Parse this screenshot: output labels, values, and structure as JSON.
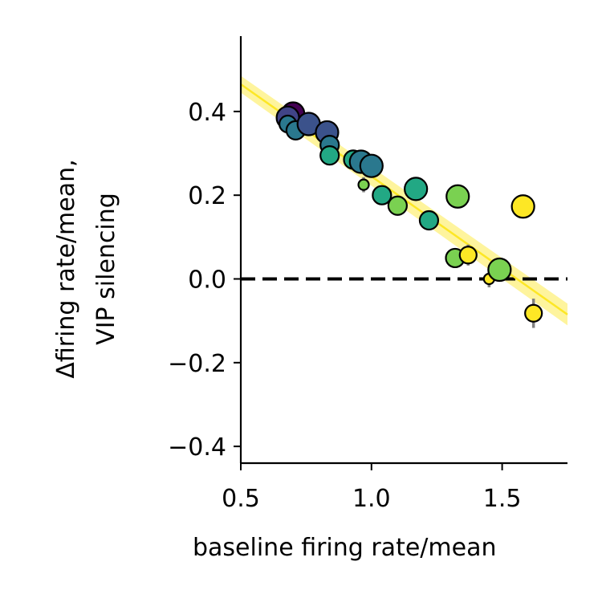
{
  "chart_data": {
    "type": "scatter",
    "xlabel": "baseline firing rate/mean",
    "ylabel_lines": [
      "Δfiring rate/mean,",
      "VIP silencing"
    ],
    "xlim": [
      0.5,
      1.75
    ],
    "ylim": [
      -0.44,
      0.58
    ],
    "xticks": [
      0.5,
      1.0,
      1.5
    ],
    "xtick_labels": [
      "0.5",
      "1.0",
      "1.5"
    ],
    "yticks": [
      -0.4,
      -0.2,
      0.0,
      0.2,
      0.4
    ],
    "ytick_labels": [
      "−0.4",
      "−0.2",
      "0.0",
      "0.2",
      "0.4"
    ],
    "grid": false,
    "legend": "none",
    "reference_line": {
      "y": 0.0,
      "style": "dashed",
      "color": "#000000"
    },
    "fit_line": {
      "x": [
        0.5,
        1.75
      ],
      "y": [
        0.465,
        -0.085
      ],
      "color": "#fde725",
      "band_color": "#fde725"
    },
    "points": [
      {
        "x": 0.7,
        "y": 0.395,
        "color": "#440154",
        "size": "large",
        "err": 0.005
      },
      {
        "x": 0.68,
        "y": 0.385,
        "color": "#414487",
        "size": "large",
        "err": 0.005
      },
      {
        "x": 0.68,
        "y": 0.37,
        "color": "#2a788e",
        "size": "small",
        "err": 0.005
      },
      {
        "x": 0.71,
        "y": 0.355,
        "color": "#2a788e",
        "size": "medium",
        "err": 0.005
      },
      {
        "x": 0.76,
        "y": 0.37,
        "color": "#3b528b",
        "size": "large",
        "err": 0.005
      },
      {
        "x": 0.83,
        "y": 0.35,
        "color": "#3b528b",
        "size": "large",
        "err": 0.005
      },
      {
        "x": 0.84,
        "y": 0.32,
        "color": "#2a788e",
        "size": "medium",
        "err": 0.005
      },
      {
        "x": 0.84,
        "y": 0.295,
        "color": "#22a884",
        "size": "medium",
        "err": 0.005
      },
      {
        "x": 0.93,
        "y": 0.285,
        "color": "#22a884",
        "size": "medium",
        "err": 0.005
      },
      {
        "x": 0.96,
        "y": 0.28,
        "color": "#2a788e",
        "size": "large",
        "err": 0.005
      },
      {
        "x": 1.0,
        "y": 0.27,
        "color": "#2a788e",
        "size": "large",
        "err": 0.005
      },
      {
        "x": 0.97,
        "y": 0.225,
        "color": "#7ad151",
        "size": "tiny",
        "err": 0.018
      },
      {
        "x": 1.04,
        "y": 0.2,
        "color": "#22a884",
        "size": "medium",
        "err": 0.005
      },
      {
        "x": 1.1,
        "y": 0.175,
        "color": "#7ad151",
        "size": "medium",
        "err": 0.005
      },
      {
        "x": 1.17,
        "y": 0.215,
        "color": "#22a884",
        "size": "large",
        "err": 0.005
      },
      {
        "x": 1.22,
        "y": 0.14,
        "color": "#22a884",
        "size": "medium",
        "err": 0.005
      },
      {
        "x": 1.33,
        "y": 0.197,
        "color": "#7ad151",
        "size": "large",
        "err": 0.005
      },
      {
        "x": 1.32,
        "y": 0.05,
        "color": "#7ad151",
        "size": "medium",
        "err": 0.005
      },
      {
        "x": 1.37,
        "y": 0.057,
        "color": "#fde725",
        "size": "small",
        "err": 0.025
      },
      {
        "x": 1.45,
        "y": 0.0,
        "color": "#fde725",
        "size": "tiny",
        "err": 0.02
      },
      {
        "x": 1.49,
        "y": 0.022,
        "color": "#7ad151",
        "size": "large",
        "err": 0.005
      },
      {
        "x": 1.58,
        "y": 0.173,
        "color": "#fde725",
        "size": "large",
        "err": 0.005
      },
      {
        "x": 1.62,
        "y": -0.082,
        "color": "#fde725",
        "size": "small",
        "err": 0.035
      }
    ]
  }
}
